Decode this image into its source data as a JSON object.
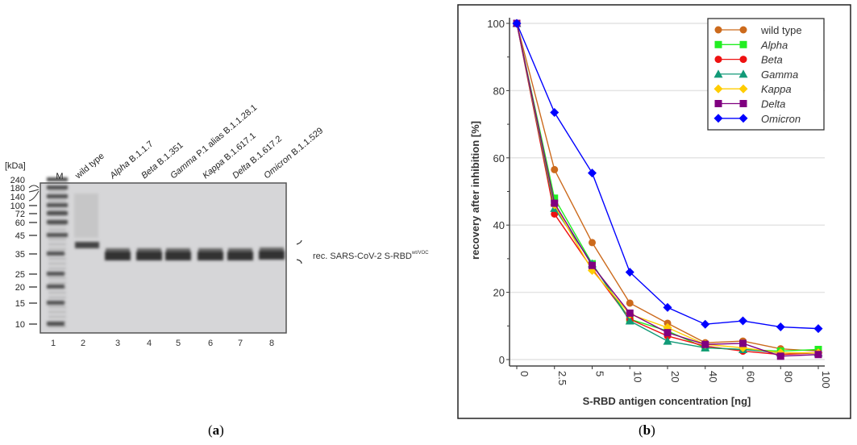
{
  "panel_a": {
    "caption": "(a)",
    "caption_letter": "a",
    "unit_label": "[kDa]",
    "marker_lane_label": "M",
    "marker_sizes": [
      "240",
      "180",
      "140",
      "100",
      "72",
      "60",
      "45",
      "35",
      "25",
      "20",
      "15",
      "10"
    ],
    "lane_labels": [
      {
        "name": "wild type",
        "italic": false,
        "rest": ""
      },
      {
        "name": "Alpha",
        "italic": true,
        "rest": " B.1.1.7"
      },
      {
        "name": "Beta",
        "italic": true,
        "rest": " B.1.351"
      },
      {
        "name": "Gamma",
        "italic": true,
        "rest": " P.1 alias B.1.1.28.1"
      },
      {
        "name": "Kappa",
        "italic": true,
        "rest": " B.1.617.1"
      },
      {
        "name": "Delta",
        "italic": true,
        "rest": " B.1.617.2"
      },
      {
        "name": "Omicron",
        "italic": true,
        "rest": " B.1.1.529"
      }
    ],
    "lane_numbers": [
      "1",
      "2",
      "3",
      "4",
      "5",
      "6",
      "7",
      "8"
    ],
    "band_label": "rec. SARS-CoV-2 S-RBD",
    "band_label_superscript": "wt/VOC"
  },
  "panel_b": {
    "caption": "(b)",
    "caption_letter": "b"
  },
  "chart_data": {
    "type": "line",
    "xlabel": "S-RBD antigen concentration [ng]",
    "ylabel": "recovery after inhibition [%]",
    "categories": [
      "0",
      "2.5",
      "5",
      "10",
      "20",
      "40",
      "60",
      "80",
      "100"
    ],
    "ylim": [
      0,
      100
    ],
    "yticks": [
      0,
      20,
      40,
      60,
      80,
      100
    ],
    "grid": "horizontal",
    "legend_position": "top-right",
    "series": [
      {
        "name": "wild type",
        "italic": false,
        "color": "#cc6a1c",
        "marker": "circle",
        "values": [
          100,
          56.5,
          34.8,
          16.8,
          10.8,
          5.0,
          5.5,
          3.2,
          2.5
        ]
      },
      {
        "name": "Alpha",
        "italic": true,
        "color": "#22ee22",
        "marker": "square",
        "values": [
          100,
          48.0,
          28.5,
          12.0,
          8.5,
          3.5,
          3.0,
          2.5,
          3.0
        ]
      },
      {
        "name": "Beta",
        "italic": true,
        "color": "#ee1111",
        "marker": "circle",
        "values": [
          100,
          43.3,
          27.0,
          12.0,
          7.0,
          4.0,
          2.5,
          1.5,
          2.0
        ]
      },
      {
        "name": "Gamma",
        "italic": true,
        "color": "#129a78",
        "marker": "triangle",
        "values": [
          100,
          45.0,
          28.5,
          11.5,
          5.5,
          3.5,
          3.0,
          2.0,
          2.0
        ]
      },
      {
        "name": "Kappa",
        "italic": true,
        "color": "#ffcc00",
        "marker": "diamond",
        "values": [
          100,
          46.0,
          26.5,
          13.5,
          9.5,
          4.5,
          3.5,
          2.0,
          2.0
        ]
      },
      {
        "name": "Delta",
        "italic": true,
        "color": "#800080",
        "marker": "square",
        "values": [
          100,
          46.5,
          28.0,
          13.8,
          8.0,
          4.5,
          4.8,
          1.0,
          1.5
        ]
      },
      {
        "name": "Omicron",
        "italic": true,
        "color": "#0000ff",
        "marker": "diamond",
        "values": [
          100,
          73.5,
          55.5,
          26.0,
          15.5,
          10.5,
          11.5,
          9.7,
          9.2
        ]
      }
    ]
  }
}
